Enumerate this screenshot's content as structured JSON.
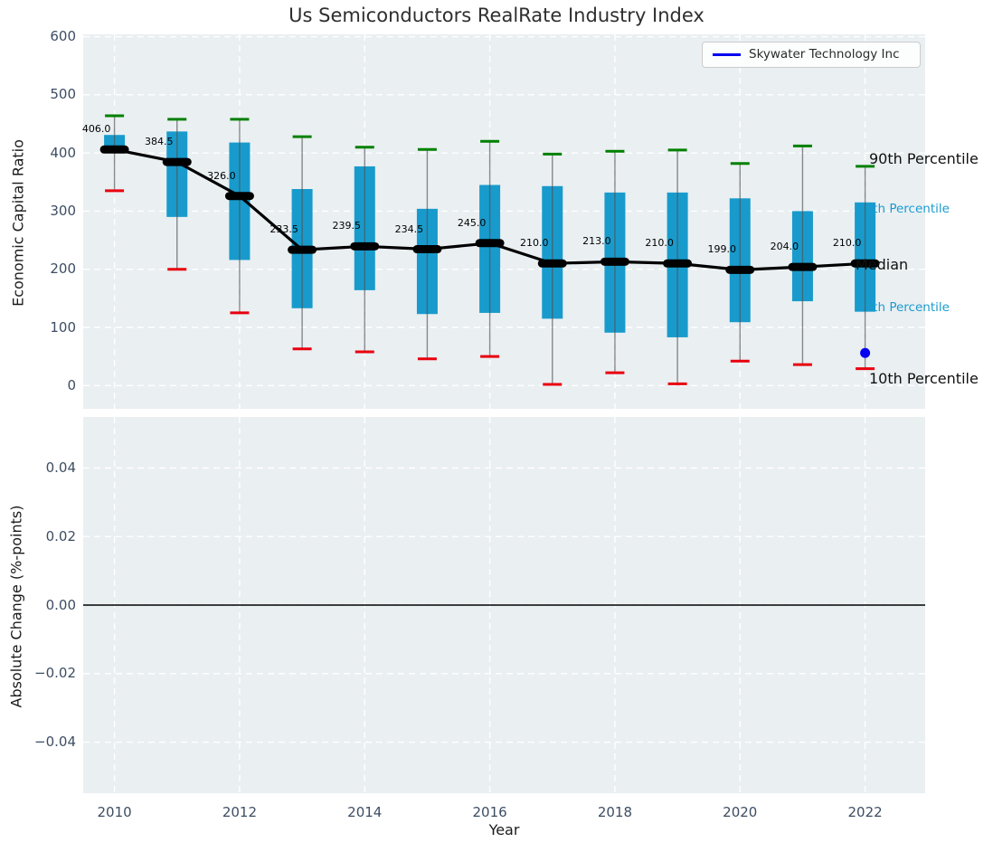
{
  "figure": {
    "title": "Us Semiconductors RealRate Industry Index"
  },
  "top_plot": {
    "ylabel": "Economic Capital Ratio",
    "ytick_values": [
      600,
      500,
      400,
      300,
      200,
      100,
      0
    ],
    "ytick_labels": [
      "600",
      "500",
      "400",
      "300",
      "200",
      "100",
      "0"
    ],
    "legend": {
      "label": "Skywater Technology Inc"
    },
    "annotations": {
      "p90": "90th Percentile",
      "p75": "75th Percentile",
      "median": "Median",
      "p25": "25th Percentile",
      "p10": "10th Percentile"
    }
  },
  "bottom_plot": {
    "ylabel": "Absolute Change (%-points)",
    "xlabel": "Year",
    "ytick_values": [
      0.04,
      0.02,
      0,
      -0.02,
      -0.04
    ],
    "ytick_labels": [
      "0.04",
      "0.02",
      "0.00",
      "−0.02",
      "−0.04"
    ],
    "xtick_values": [
      2010,
      2012,
      2014,
      2016,
      2018,
      2020,
      2022
    ],
    "xtick_labels": [
      "2010",
      "2012",
      "2014",
      "2016",
      "2018",
      "2020",
      "2022"
    ]
  },
  "chart_data": [
    {
      "type": "box",
      "title": "Us Semiconductors RealRate Industry Index",
      "xlabel": "Year",
      "ylabel": "Economic Capital Ratio",
      "x": [
        2010,
        2011,
        2012,
        2013,
        2014,
        2015,
        2016,
        2017,
        2018,
        2019,
        2020,
        2021,
        2022
      ],
      "series": [
        {
          "name": "90th Percentile",
          "values": [
            464,
            458,
            458,
            428,
            410,
            406,
            420,
            398,
            403,
            405,
            382,
            412,
            377
          ]
        },
        {
          "name": "75th Percentile",
          "values": [
            431,
            437,
            418,
            338,
            377,
            304,
            345,
            343,
            332,
            332,
            322,
            300,
            315
          ]
        },
        {
          "name": "Median",
          "values": [
            406.0,
            384.5,
            326.0,
            233.5,
            239.5,
            234.5,
            245.0,
            210.0,
            213.0,
            210.0,
            199.0,
            204.0,
            210.0
          ]
        },
        {
          "name": "25th Percentile",
          "values": [
            402,
            290,
            216,
            133,
            164,
            123,
            125,
            115,
            91,
            83,
            109,
            145,
            127
          ]
        },
        {
          "name": "10th Percentile",
          "values": [
            335,
            200,
            125,
            63,
            58,
            46,
            50,
            2,
            22,
            3,
            42,
            36,
            29
          ]
        }
      ],
      "median_labels": [
        "406.0",
        "384.5",
        "326.0",
        "233.5",
        "239.5",
        "234.5",
        "245.0",
        "210.0",
        "213.0",
        "210.0",
        "199.0",
        "204.0",
        "210.0"
      ],
      "company_point": {
        "name": "Skywater Technology Inc",
        "x": 2022,
        "y": 56
      },
      "xlim": [
        2009.5,
        2022.96
      ],
      "ylim": [
        -40,
        604
      ],
      "xticks": [
        2010,
        2012,
        2014,
        2016,
        2018,
        2020,
        2022
      ],
      "yticks": [
        0,
        100,
        200,
        300,
        400,
        500,
        600
      ],
      "grid": true,
      "legend_position": "upper right"
    },
    {
      "type": "line",
      "xlabel": "Year",
      "ylabel": "Absolute Change (%-points)",
      "series": [],
      "xlim": [
        2009.5,
        2022.96
      ],
      "ylim": [
        -0.0549,
        0.0549
      ],
      "xticks": [
        2010,
        2012,
        2014,
        2016,
        2018,
        2020,
        2022
      ],
      "yticks": [
        0.04,
        0.02,
        0,
        -0.02,
        -0.04
      ],
      "zero_line": 0,
      "grid": true
    }
  ],
  "colors": {
    "bar": "#189bcc",
    "p90_cap": "#008000",
    "p10_cap": "#e8000d",
    "median": "#000000",
    "whisker": "#505050",
    "company": "#0202f0",
    "percentile_label": "#1a9bd0",
    "tick_label": "#3d4d63",
    "plot_bg": "#eaeff2",
    "grid": "#ffffff"
  }
}
